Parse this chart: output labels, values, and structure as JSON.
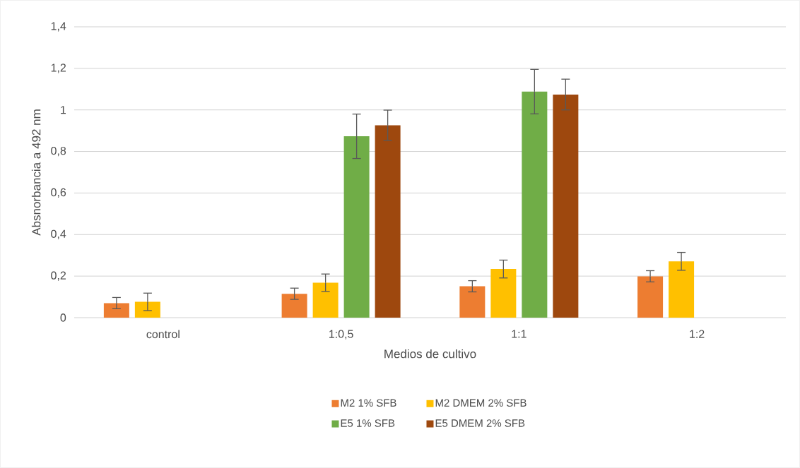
{
  "chart_data": {
    "type": "bar",
    "xlabel": "Medios de cultivo",
    "ylabel": "Absnorbancia a 492 nm",
    "categories": [
      "control",
      "1:0,5",
      "1:1",
      "1:2"
    ],
    "series": [
      {
        "name": "M2 1% SFB",
        "color": "#ed7d31",
        "values": [
          0.07,
          0.115,
          0.151,
          0.199
        ],
        "errors": [
          0.027,
          0.027,
          0.027,
          0.027
        ]
      },
      {
        "name": "M2 DMEM 2% SFB",
        "color": "#ffc000",
        "values": [
          0.076,
          0.168,
          0.234,
          0.271
        ],
        "errors": [
          0.042,
          0.042,
          0.043,
          0.043
        ]
      },
      {
        "name": "E5 1% SFB",
        "color": "#70ad47",
        "values": [
          null,
          0.873,
          1.088,
          null
        ],
        "errors": [
          null,
          0.107,
          0.107,
          null
        ]
      },
      {
        "name": "E5 DMEM 2% SFB",
        "color": "#9e480e",
        "values": [
          null,
          0.926,
          1.074,
          null
        ],
        "errors": [
          null,
          0.073,
          0.074,
          null
        ]
      }
    ],
    "ylim": [
      0,
      1.4
    ],
    "yticks": [
      0,
      {
        "value": 0.2,
        "label": "0,2"
      },
      {
        "value": 0.4,
        "label": "0,4"
      },
      {
        "value": 0.6,
        "label": "0,6"
      },
      {
        "value": 0.8,
        "label": "0,8"
      },
      1,
      {
        "value": 1.2,
        "label": "1,2"
      },
      {
        "value": 1.4,
        "label": "1,4"
      }
    ],
    "grid": "y",
    "legend": "bottom"
  }
}
